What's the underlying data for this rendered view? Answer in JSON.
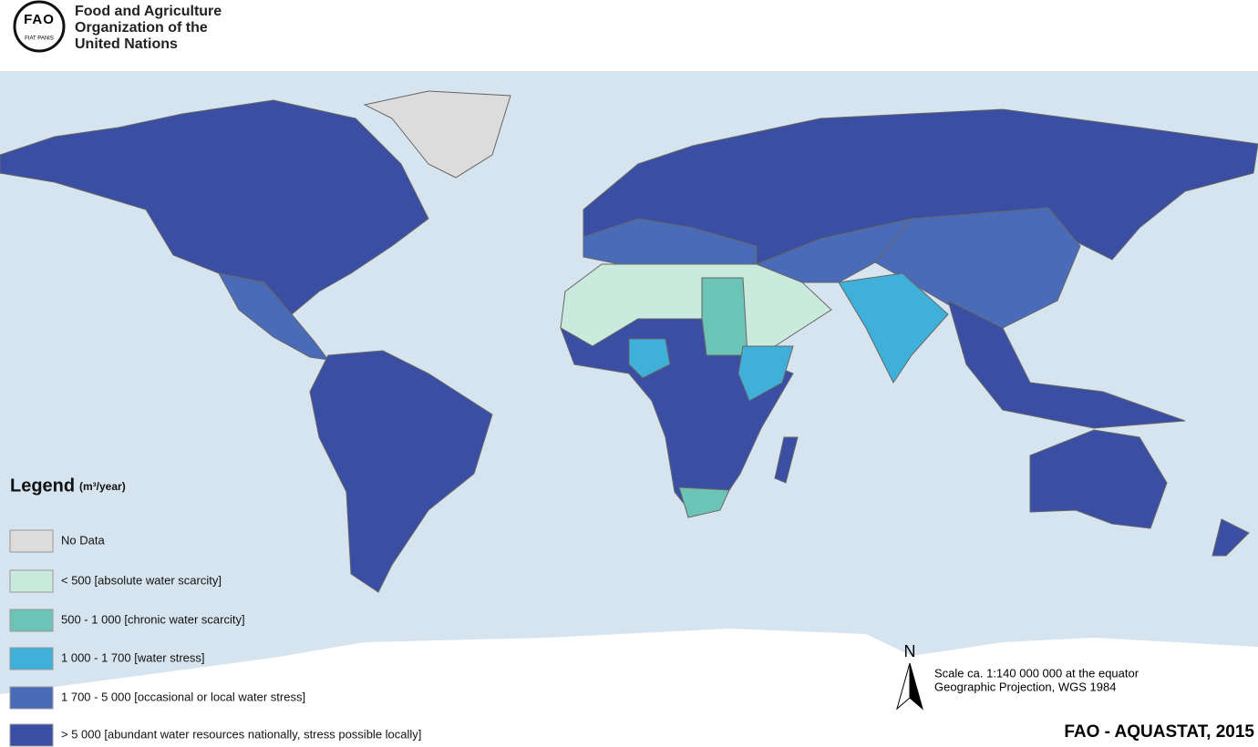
{
  "header": {
    "logo_text": "FAO",
    "logo_motto": "FIAT PANIS",
    "org_name": [
      "Food and Agriculture",
      "Organization of the",
      "United Nations"
    ]
  },
  "legend": {
    "title": "Legend",
    "unit": "(m³/year)",
    "items": [
      {
        "label": "No Data",
        "color": "#dcdcdc"
      },
      {
        "label": "< 500 [absolute water scarcity]",
        "color": "#c9eadd"
      },
      {
        "label": "500 - 1 000 [chronic water scarcity]",
        "color": "#6cc4b7"
      },
      {
        "label": "1 000 - 1 700 [water stress]",
        "color": "#3eb0da"
      },
      {
        "label": "1 700 - 5 000 [occasional or local water stress]",
        "color": "#4a6cb8"
      },
      {
        "label": "> 5 000 [abundant water resources nationally, stress possible locally]",
        "color": "#3a4ea3"
      }
    ]
  },
  "map": {
    "north": "N",
    "scale_lines": [
      "Scale ca. 1:140 000 000 at the equator",
      "Geographic Projection, WGS 1984"
    ]
  },
  "footer": {
    "credit": "FAO - AQUASTAT, 2015"
  }
}
